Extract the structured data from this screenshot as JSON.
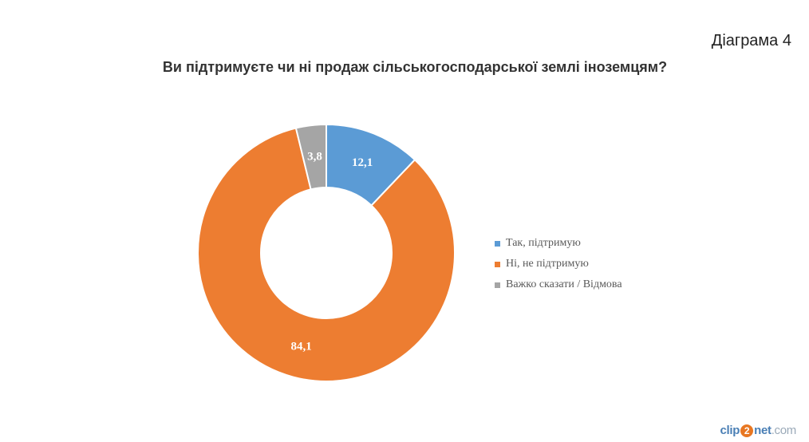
{
  "header": {
    "diagram_label": "Діаграма 4"
  },
  "chart_data": {
    "type": "pie",
    "variant": "donut",
    "title": "Ви підтримуєте чи ні продаж сільськогосподарської землі іноземцям?",
    "categories": [
      "Так, підтримую",
      "Ні, не підтримую",
      "Важко сказати / Відмова"
    ],
    "values": [
      12.1,
      84.1,
      3.8
    ],
    "data_labels": [
      "12,1",
      "84,1",
      "3,8"
    ],
    "colors": [
      "#5b9bd5",
      "#ed7d31",
      "#a5a5a5"
    ],
    "legend_position": "right"
  },
  "watermark": {
    "part1": "clip",
    "part2": "2",
    "part3": "net",
    "part4": ".com"
  }
}
